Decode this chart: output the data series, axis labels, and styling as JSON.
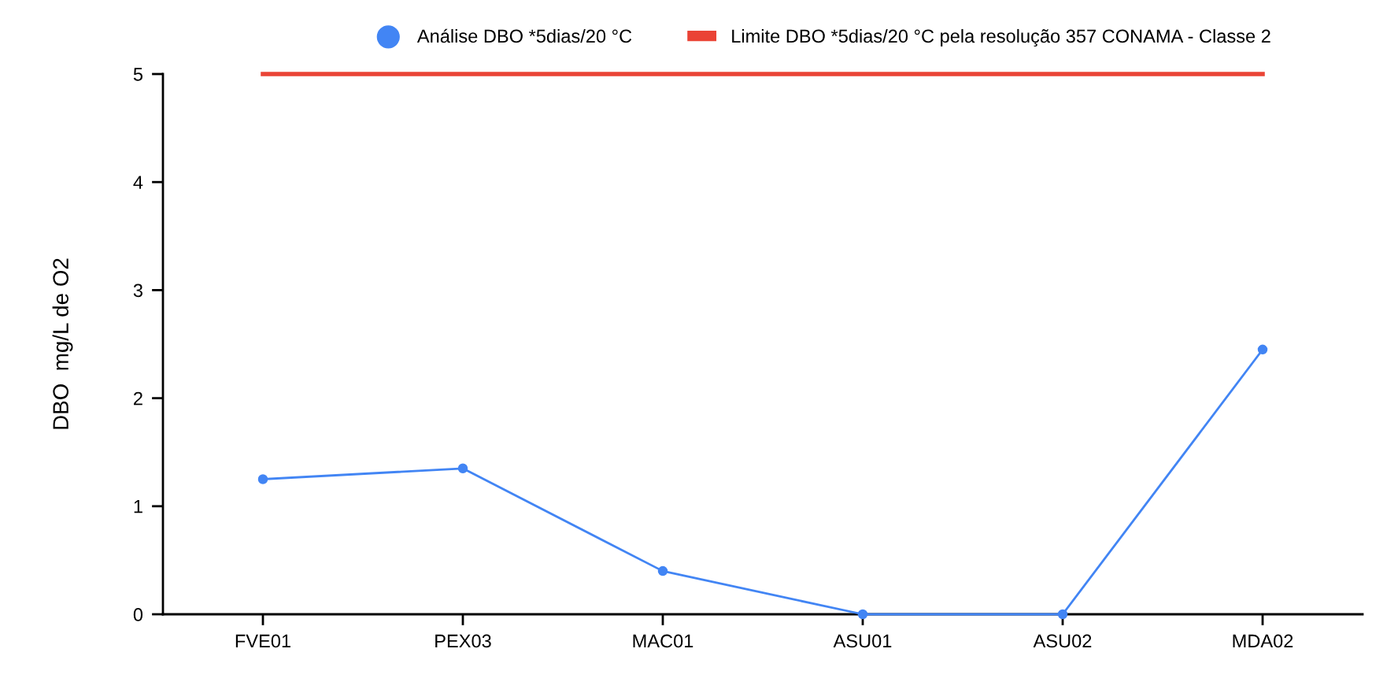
{
  "chart_data": {
    "type": "line",
    "ylabel": "DBO  mg/L de O2",
    "categories": [
      "FVE01",
      "PEX03",
      "MAC01",
      "ASU01",
      "ASU02",
      "MDA02"
    ],
    "series": [
      {
        "name": "Análise DBO *5dias/20 °C",
        "color": "#4285f4",
        "values": [
          1.25,
          1.35,
          0.4,
          0,
          0,
          2.45
        ],
        "marker": "circle"
      },
      {
        "name": "Limite DBO *5dias/20 °C pela resolução 357 CONAMA - Classe 2",
        "color": "#ea4335",
        "values": [
          5,
          5,
          5,
          5,
          5,
          5
        ],
        "marker": "none"
      }
    ],
    "ylim": [
      0,
      5
    ],
    "yticks": [
      0,
      1,
      2,
      3,
      4,
      5
    ],
    "grid": false,
    "legend": "top"
  }
}
